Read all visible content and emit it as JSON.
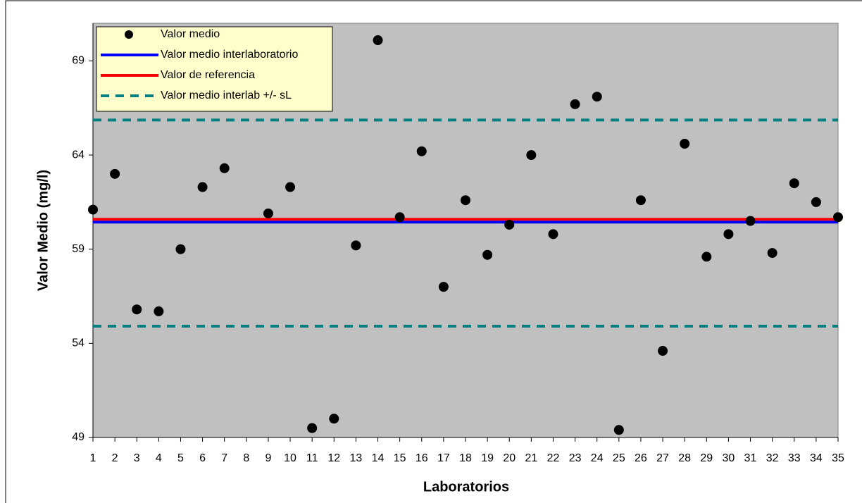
{
  "chart_data": {
    "type": "scatter",
    "x_label": "Laboratorios",
    "y_label": "Valor Medio (mg/l)",
    "x": [
      1,
      2,
      3,
      4,
      5,
      6,
      7,
      8,
      9,
      10,
      11,
      12,
      13,
      14,
      15,
      16,
      17,
      18,
      19,
      20,
      21,
      22,
      23,
      24,
      25,
      26,
      27,
      28,
      29,
      30,
      31,
      32,
      33,
      34,
      35
    ],
    "xlim": [
      1,
      35
    ],
    "ylim": [
      49,
      71
    ],
    "yticks": [
      49,
      54,
      59,
      64,
      69
    ],
    "series": [
      {
        "name": "Valor medio",
        "color": "#000000",
        "values": [
          61.1,
          63.0,
          55.8,
          55.7,
          59.0,
          62.3,
          63.3,
          null,
          60.9,
          62.3,
          49.5,
          50.0,
          59.2,
          70.1,
          60.7,
          64.2,
          57.0,
          61.6,
          58.7,
          60.3,
          64.0,
          59.8,
          66.7,
          67.1,
          49.4,
          61.6,
          53.6,
          64.6,
          58.6,
          59.8,
          60.5,
          58.8,
          62.5,
          61.5,
          60.7
        ]
      }
    ],
    "hlines": [
      {
        "name": "Valor medio interlaboratorio",
        "color": "#0000ff",
        "dashed": false,
        "values": [
          60.44
        ]
      },
      {
        "name": "Valor de referencia",
        "color": "#ff0000",
        "dashed": false,
        "values": [
          60.59
        ]
      },
      {
        "name": "Valor medio interlab  +/- sL",
        "color": "#008080",
        "dashed": true,
        "values": [
          65.86,
          54.91
        ]
      }
    ],
    "plot_background": "#c0c0c0",
    "legend_background": "#ffffcc"
  }
}
